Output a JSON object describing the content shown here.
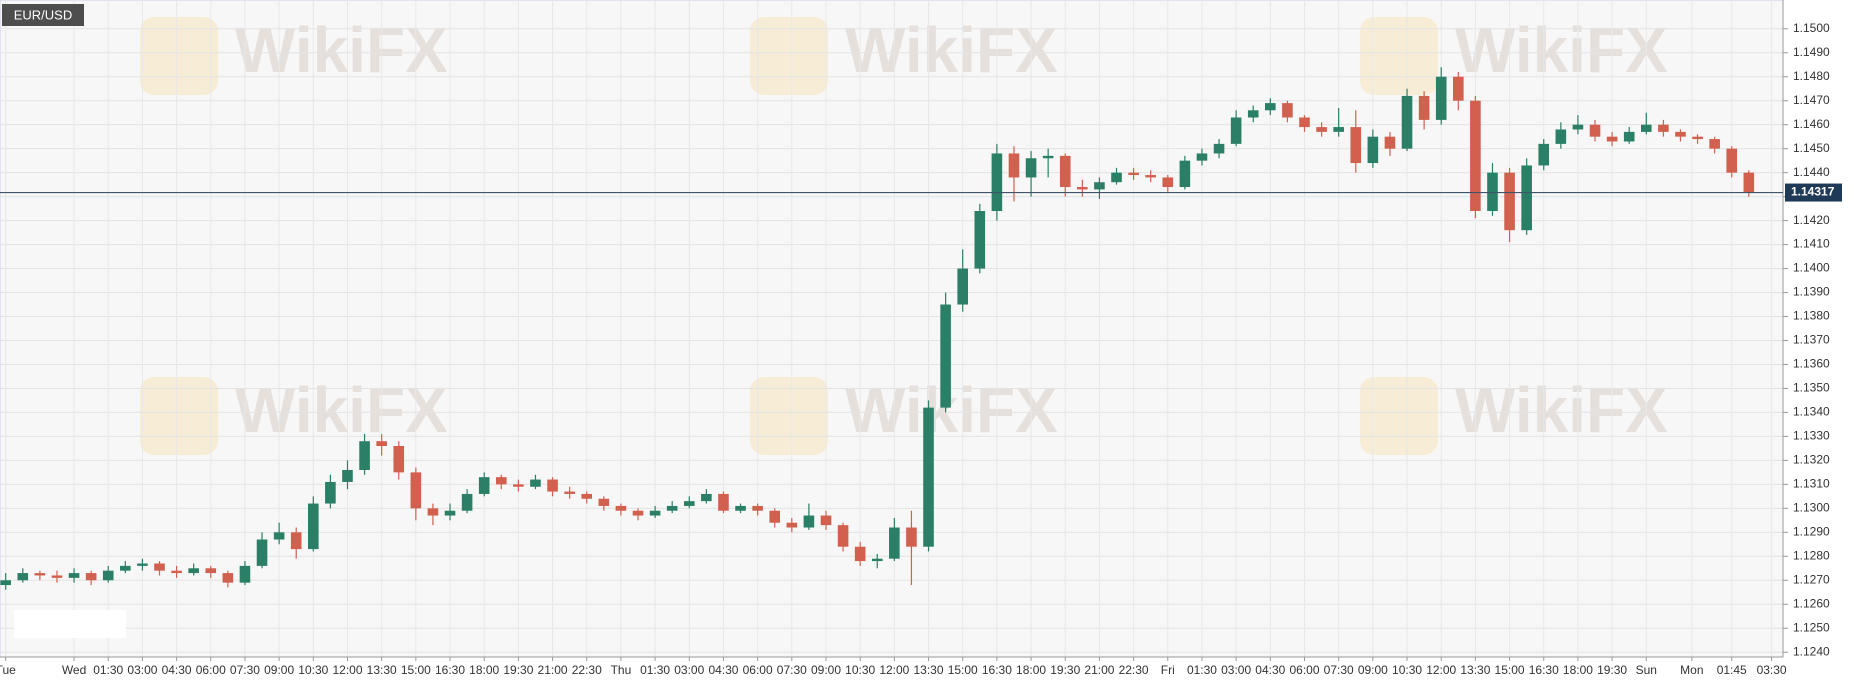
{
  "chart_data": {
    "type": "candlestick",
    "symbol": "EUR/USD",
    "watermark": "WikiFX",
    "up_color": "#2a7f66",
    "down_color": "#d2604f",
    "grid": true,
    "xlim": [
      0,
      313
    ],
    "ylim": [
      1.1238,
      1.1512
    ],
    "last_price": 1.14317,
    "yticks": [
      {
        "value": 1.124,
        "label": "1.1240"
      },
      {
        "value": 1.125,
        "label": "1.1250"
      },
      {
        "value": 1.126,
        "label": "1.1260"
      },
      {
        "value": 1.127,
        "label": "1.1270"
      },
      {
        "value": 1.128,
        "label": "1.1280"
      },
      {
        "value": 1.129,
        "label": "1.1290"
      },
      {
        "value": 1.13,
        "label": "1.1300"
      },
      {
        "value": 1.131,
        "label": "1.1310"
      },
      {
        "value": 1.132,
        "label": "1.1320"
      },
      {
        "value": 1.133,
        "label": "1.1330"
      },
      {
        "value": 1.134,
        "label": "1.1340"
      },
      {
        "value": 1.135,
        "label": "1.1350"
      },
      {
        "value": 1.136,
        "label": "1.1360"
      },
      {
        "value": 1.137,
        "label": "1.1370"
      },
      {
        "value": 1.138,
        "label": "1.1380"
      },
      {
        "value": 1.139,
        "label": "1.1390"
      },
      {
        "value": 1.14,
        "label": "1.1400"
      },
      {
        "value": 1.141,
        "label": "1.1410"
      },
      {
        "value": 1.142,
        "label": "1.1420"
      },
      {
        "value": 1.143,
        "label": "1.1430"
      },
      {
        "value": 1.144,
        "label": "1.1440"
      },
      {
        "value": 1.145,
        "label": "1.1450"
      },
      {
        "value": 1.146,
        "label": "1.1460"
      },
      {
        "value": 1.147,
        "label": "1.1470"
      },
      {
        "value": 1.148,
        "label": "1.1480"
      },
      {
        "value": 1.149,
        "label": "1.1490"
      },
      {
        "value": 1.15,
        "label": "1.1500"
      }
    ],
    "xticks": [
      {
        "value": 1,
        "label": "Tue"
      },
      {
        "value": 13,
        "label": "Wed"
      },
      {
        "value": 19,
        "label": "01:30"
      },
      {
        "value": 25,
        "label": "03:00"
      },
      {
        "value": 31,
        "label": "04:30"
      },
      {
        "value": 37,
        "label": "06:00"
      },
      {
        "value": 43,
        "label": "07:30"
      },
      {
        "value": 49,
        "label": "09:00"
      },
      {
        "value": 55,
        "label": "10:30"
      },
      {
        "value": 61,
        "label": "12:00"
      },
      {
        "value": 67,
        "label": "13:30"
      },
      {
        "value": 73,
        "label": "15:00"
      },
      {
        "value": 79,
        "label": "16:30"
      },
      {
        "value": 85,
        "label": "18:00"
      },
      {
        "value": 91,
        "label": "19:30"
      },
      {
        "value": 97,
        "label": "21:00"
      },
      {
        "value": 103,
        "label": "22:30"
      },
      {
        "value": 109,
        "label": "Thu"
      },
      {
        "value": 115,
        "label": "01:30"
      },
      {
        "value": 121,
        "label": "03:00"
      },
      {
        "value": 127,
        "label": "04:30"
      },
      {
        "value": 133,
        "label": "06:00"
      },
      {
        "value": 139,
        "label": "07:30"
      },
      {
        "value": 145,
        "label": "09:00"
      },
      {
        "value": 151,
        "label": "10:30"
      },
      {
        "value": 157,
        "label": "12:00"
      },
      {
        "value": 163,
        "label": "13:30"
      },
      {
        "value": 169,
        "label": "15:00"
      },
      {
        "value": 175,
        "label": "16:30"
      },
      {
        "value": 181,
        "label": "18:00"
      },
      {
        "value": 187,
        "label": "19:30"
      },
      {
        "value": 193,
        "label": "21:00"
      },
      {
        "value": 199,
        "label": "22:30"
      },
      {
        "value": 205,
        "label": "Fri"
      },
      {
        "value": 211,
        "label": "01:30"
      },
      {
        "value": 217,
        "label": "03:00"
      },
      {
        "value": 223,
        "label": "04:30"
      },
      {
        "value": 229,
        "label": "06:00"
      },
      {
        "value": 235,
        "label": "07:30"
      },
      {
        "value": 241,
        "label": "09:00"
      },
      {
        "value": 247,
        "label": "10:30"
      },
      {
        "value": 253,
        "label": "12:00"
      },
      {
        "value": 259,
        "label": "13:30"
      },
      {
        "value": 265,
        "label": "15:00"
      },
      {
        "value": 271,
        "label": "16:30"
      },
      {
        "value": 277,
        "label": "18:00"
      },
      {
        "value": 283,
        "label": "19:30"
      },
      {
        "value": 289,
        "label": "Sun"
      },
      {
        "value": 297,
        "label": "Mon"
      },
      {
        "value": 304,
        "label": "01:45"
      },
      {
        "value": 311,
        "label": "03:30"
      }
    ],
    "x": [
      1,
      4,
      7,
      10,
      13,
      16,
      19,
      22,
      25,
      28,
      31,
      34,
      37,
      40,
      43,
      46,
      49,
      52,
      55,
      58,
      61,
      64,
      67,
      70,
      73,
      76,
      79,
      82,
      85,
      88,
      91,
      94,
      97,
      100,
      103,
      106,
      109,
      112,
      115,
      118,
      121,
      124,
      127,
      130,
      133,
      136,
      139,
      142,
      145,
      148,
      151,
      154,
      157,
      160,
      163,
      166,
      169,
      172,
      175,
      178,
      181,
      184,
      187,
      190,
      193,
      196,
      199,
      202,
      205,
      208,
      211,
      214,
      217,
      220,
      223,
      226,
      229,
      232,
      235,
      238,
      241,
      244,
      247,
      250,
      253,
      256,
      259,
      262,
      265,
      268,
      271,
      274,
      277,
      280,
      283,
      286,
      289,
      292,
      295,
      298,
      301,
      304,
      307
    ],
    "ohlc": [
      [
        1.1268,
        1.1273,
        1.1266,
        1.127
      ],
      [
        1.127,
        1.1275,
        1.1269,
        1.1273
      ],
      [
        1.1273,
        1.1274,
        1.127,
        1.1272
      ],
      [
        1.1272,
        1.1274,
        1.1269,
        1.1271
      ],
      [
        1.1271,
        1.1275,
        1.1269,
        1.1273
      ],
      [
        1.1273,
        1.1274,
        1.1268,
        1.127
      ],
      [
        1.127,
        1.1276,
        1.1269,
        1.1274
      ],
      [
        1.1274,
        1.1278,
        1.1273,
        1.1276
      ],
      [
        1.1276,
        1.1279,
        1.1274,
        1.1277
      ],
      [
        1.1277,
        1.1278,
        1.1272,
        1.1274
      ],
      [
        1.1274,
        1.1276,
        1.1271,
        1.1273
      ],
      [
        1.1273,
        1.1277,
        1.1272,
        1.1275
      ],
      [
        1.1275,
        1.1276,
        1.1271,
        1.1273
      ],
      [
        1.1273,
        1.1274,
        1.1267,
        1.1269
      ],
      [
        1.1269,
        1.1278,
        1.1268,
        1.1276
      ],
      [
        1.1276,
        1.129,
        1.1275,
        1.1287
      ],
      [
        1.1287,
        1.1294,
        1.1285,
        1.129
      ],
      [
        1.129,
        1.1292,
        1.1279,
        1.1283
      ],
      [
        1.1283,
        1.1305,
        1.1282,
        1.1302
      ],
      [
        1.1302,
        1.1314,
        1.13,
        1.1311
      ],
      [
        1.1311,
        1.132,
        1.1308,
        1.1316
      ],
      [
        1.1316,
        1.1331,
        1.1314,
        1.1328
      ],
      [
        1.1328,
        1.1331,
        1.1322,
        1.1326
      ],
      [
        1.1326,
        1.1328,
        1.1312,
        1.1315
      ],
      [
        1.1315,
        1.1317,
        1.1295,
        1.13
      ],
      [
        1.13,
        1.1302,
        1.1293,
        1.1297
      ],
      [
        1.1297,
        1.1302,
        1.1295,
        1.1299
      ],
      [
        1.1299,
        1.1308,
        1.1298,
        1.1306
      ],
      [
        1.1306,
        1.1315,
        1.1305,
        1.1313
      ],
      [
        1.1313,
        1.1314,
        1.1308,
        1.131
      ],
      [
        1.131,
        1.1312,
        1.1307,
        1.1309
      ],
      [
        1.1309,
        1.1314,
        1.1308,
        1.1312
      ],
      [
        1.1312,
        1.1313,
        1.1305,
        1.1307
      ],
      [
        1.1307,
        1.1309,
        1.1304,
        1.1306
      ],
      [
        1.1306,
        1.1307,
        1.1302,
        1.1304
      ],
      [
        1.1304,
        1.1305,
        1.1299,
        1.1301
      ],
      [
        1.1301,
        1.1302,
        1.1297,
        1.1299
      ],
      [
        1.1299,
        1.13,
        1.1295,
        1.1297
      ],
      [
        1.1297,
        1.1301,
        1.1296,
        1.1299
      ],
      [
        1.1299,
        1.1303,
        1.1298,
        1.1301
      ],
      [
        1.1301,
        1.1305,
        1.13,
        1.1303
      ],
      [
        1.1303,
        1.1308,
        1.1302,
        1.1306
      ],
      [
        1.1306,
        1.1307,
        1.1298,
        1.1299
      ],
      [
        1.1299,
        1.1302,
        1.1298,
        1.1301
      ],
      [
        1.1301,
        1.1302,
        1.1297,
        1.1299
      ],
      [
        1.1299,
        1.13,
        1.1292,
        1.1294
      ],
      [
        1.1294,
        1.1296,
        1.129,
        1.1292
      ],
      [
        1.1292,
        1.1302,
        1.1291,
        1.1297
      ],
      [
        1.1297,
        1.1299,
        1.1291,
        1.1293
      ],
      [
        1.1293,
        1.1294,
        1.1282,
        1.1284
      ],
      [
        1.1284,
        1.1286,
        1.1276,
        1.1278
      ],
      [
        1.1278,
        1.1281,
        1.1275,
        1.1279
      ],
      [
        1.1279,
        1.1296,
        1.1278,
        1.1292
      ],
      [
        1.1292,
        1.1299,
        1.1268,
        1.1284
      ],
      [
        1.1284,
        1.1345,
        1.1282,
        1.1342
      ],
      [
        1.1342,
        1.139,
        1.134,
        1.1385
      ],
      [
        1.1385,
        1.1408,
        1.1382,
        1.14
      ],
      [
        1.14,
        1.1427,
        1.1398,
        1.1424
      ],
      [
        1.1424,
        1.1452,
        1.142,
        1.1448
      ],
      [
        1.1448,
        1.1451,
        1.1428,
        1.1438
      ],
      [
        1.1438,
        1.1449,
        1.143,
        1.1446
      ],
      [
        1.1446,
        1.145,
        1.1438,
        1.1447
      ],
      [
        1.1447,
        1.1448,
        1.143,
        1.1434
      ],
      [
        1.1434,
        1.1437,
        1.143,
        1.1433
      ],
      [
        1.1433,
        1.1438,
        1.1429,
        1.1436
      ],
      [
        1.1436,
        1.1442,
        1.1435,
        1.144
      ],
      [
        1.144,
        1.1442,
        1.1437,
        1.1439
      ],
      [
        1.1439,
        1.1441,
        1.1436,
        1.1438
      ],
      [
        1.1438,
        1.1439,
        1.1432,
        1.1434
      ],
      [
        1.1434,
        1.1447,
        1.1433,
        1.1445
      ],
      [
        1.1445,
        1.145,
        1.1443,
        1.1448
      ],
      [
        1.1448,
        1.1454,
        1.1446,
        1.1452
      ],
      [
        1.1452,
        1.1466,
        1.1451,
        1.1463
      ],
      [
        1.1463,
        1.1468,
        1.1461,
        1.1466
      ],
      [
        1.1466,
        1.1471,
        1.1464,
        1.1469
      ],
      [
        1.1469,
        1.147,
        1.1461,
        1.1463
      ],
      [
        1.1463,
        1.1464,
        1.1457,
        1.1459
      ],
      [
        1.1459,
        1.1461,
        1.1455,
        1.1457
      ],
      [
        1.1457,
        1.1467,
        1.1455,
        1.1459
      ],
      [
        1.1459,
        1.1466,
        1.144,
        1.1444
      ],
      [
        1.1444,
        1.1458,
        1.1442,
        1.1455
      ],
      [
        1.1455,
        1.1457,
        1.1447,
        1.145
      ],
      [
        1.145,
        1.1475,
        1.1449,
        1.1472
      ],
      [
        1.1472,
        1.1474,
        1.1458,
        1.1462
      ],
      [
        1.1462,
        1.1484,
        1.146,
        1.148
      ],
      [
        1.148,
        1.1482,
        1.1466,
        1.147
      ],
      [
        1.147,
        1.1472,
        1.1421,
        1.1424
      ],
      [
        1.1424,
        1.1444,
        1.1422,
        1.144
      ],
      [
        1.144,
        1.1442,
        1.1411,
        1.1416
      ],
      [
        1.1416,
        1.1446,
        1.1414,
        1.1443
      ],
      [
        1.1443,
        1.1454,
        1.1441,
        1.1452
      ],
      [
        1.1452,
        1.1461,
        1.145,
        1.1458
      ],
      [
        1.1458,
        1.1464,
        1.1456,
        1.146
      ],
      [
        1.146,
        1.1462,
        1.1453,
        1.1455
      ],
      [
        1.1455,
        1.1457,
        1.1451,
        1.1453
      ],
      [
        1.1453,
        1.1459,
        1.1452,
        1.1457
      ],
      [
        1.1457,
        1.1465,
        1.1456,
        1.146
      ],
      [
        1.146,
        1.1462,
        1.1455,
        1.1457
      ],
      [
        1.1457,
        1.1458,
        1.1453,
        1.1455
      ],
      [
        1.1455,
        1.1456,
        1.1452,
        1.1454
      ],
      [
        1.1454,
        1.1455,
        1.1448,
        1.145
      ],
      [
        1.145,
        1.1451,
        1.1438,
        1.144
      ],
      [
        1.144,
        1.1441,
        1.143,
        1.14317
      ]
    ]
  }
}
